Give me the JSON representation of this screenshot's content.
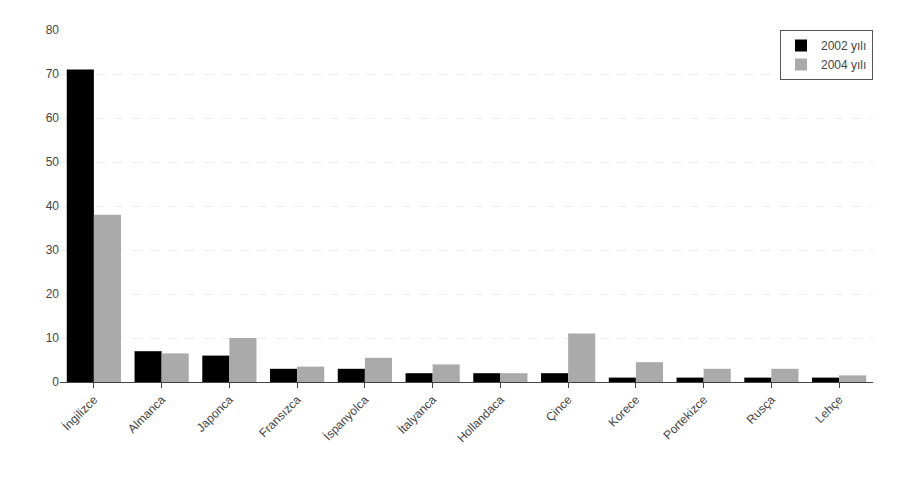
{
  "chart_data": {
    "type": "bar",
    "categories": [
      "İngilizce",
      "Almanca",
      "Japonca",
      "Fransızca",
      "İspanyolca",
      "İtalyanca",
      "Hollandaca",
      "Çince",
      "Korece",
      "Portekizce",
      "Rusça",
      "Lehçe"
    ],
    "series": [
      {
        "name": "2002 yılı",
        "color": "#000000",
        "values": [
          71,
          7,
          6,
          3,
          3,
          2,
          2,
          2,
          1,
          1,
          1,
          1
        ]
      },
      {
        "name": "2004 yılı",
        "color": "#aaaaaa",
        "values": [
          38,
          6.5,
          10,
          3.5,
          5.5,
          4,
          2,
          11,
          4.5,
          3,
          3,
          1.5
        ]
      }
    ],
    "ylim": [
      0,
      80
    ],
    "yticks": [
      0,
      10,
      20,
      30,
      40,
      50,
      60,
      70,
      80
    ],
    "grid": true,
    "legend": "upper right"
  }
}
